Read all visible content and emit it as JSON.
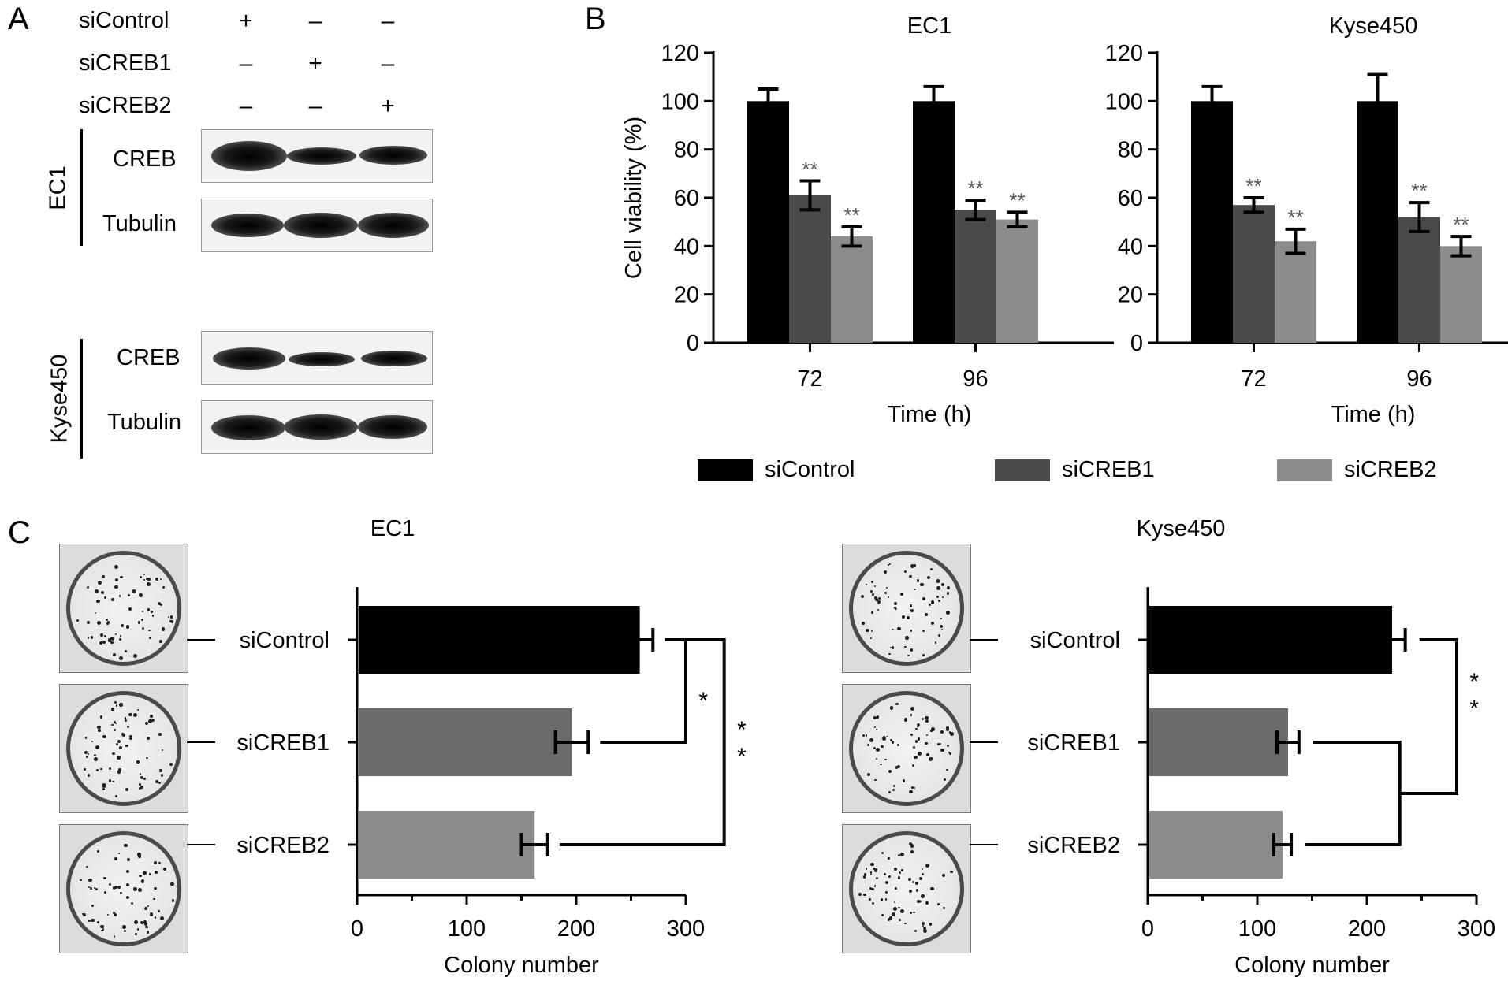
{
  "panels": {
    "a": "A",
    "b": "B",
    "c": "C"
  },
  "panel_a": {
    "conditions": [
      {
        "name": "siControl",
        "signs": [
          "+",
          "–",
          "–"
        ]
      },
      {
        "name": "siCREB1",
        "signs": [
          "–",
          "+",
          "–"
        ]
      },
      {
        "name": "siCREB2",
        "signs": [
          "–",
          "–",
          "+"
        ]
      }
    ],
    "cell_lines": [
      {
        "name": "EC1",
        "rows": [
          "CREB",
          "Tubulin"
        ]
      },
      {
        "name": "Kyse450",
        "rows": [
          "CREB",
          "Tubulin"
        ]
      }
    ],
    "band_intensity": {
      "EC1": {
        "CREB": [
          1.0,
          0.55,
          0.6
        ],
        "Tubulin": [
          0.9,
          0.95,
          0.95
        ]
      },
      "Kyse450": {
        "CREB": [
          0.95,
          0.5,
          0.55
        ],
        "Tubulin": [
          1.0,
          1.0,
          0.95
        ]
      }
    }
  },
  "chart_data": [
    {
      "type": "bar",
      "title": "EC1",
      "xlabel": "Time (h)",
      "ylabel": "Cell viability (%)",
      "categories": [
        "72",
        "96"
      ],
      "ylim": [
        0,
        120
      ],
      "yticks": [
        0,
        20,
        40,
        60,
        80,
        100,
        120
      ],
      "series": [
        {
          "name": "siControl",
          "values": [
            100,
            100
          ],
          "errors": [
            5,
            6
          ],
          "sig": [
            "",
            ""
          ],
          "color": "#000000"
        },
        {
          "name": "siCREB1",
          "values": [
            61,
            55
          ],
          "errors": [
            6,
            4
          ],
          "sig": [
            "**",
            "**"
          ],
          "color": "#4a4a4a"
        },
        {
          "name": "siCREB2",
          "values": [
            44,
            51
          ],
          "errors": [
            4,
            3
          ],
          "sig": [
            "**",
            "**"
          ],
          "color": "#8c8c8c"
        }
      ],
      "legend": "bottom"
    },
    {
      "type": "bar",
      "title": "Kyse450",
      "xlabel": "Time (h)",
      "ylabel": "",
      "categories": [
        "72",
        "96"
      ],
      "ylim": [
        0,
        120
      ],
      "yticks": [
        0,
        20,
        40,
        60,
        80,
        100,
        120
      ],
      "series": [
        {
          "name": "siControl",
          "values": [
            100,
            100
          ],
          "errors": [
            6,
            11
          ],
          "sig": [
            "",
            ""
          ],
          "color": "#000000"
        },
        {
          "name": "siCREB1",
          "values": [
            57,
            52
          ],
          "errors": [
            3,
            6
          ],
          "sig": [
            "**",
            "**"
          ],
          "color": "#4a4a4a"
        },
        {
          "name": "siCREB2",
          "values": [
            42,
            40
          ],
          "errors": [
            5,
            4
          ],
          "sig": [
            "**",
            "**"
          ],
          "color": "#8c8c8c"
        }
      ],
      "legend": "bottom"
    },
    {
      "type": "bar",
      "orientation": "horizontal",
      "title": "EC1",
      "xlabel": "Colony number",
      "categories": [
        "siControl",
        "siCREB1",
        "siCREB2"
      ],
      "values": [
        258,
        196,
        162
      ],
      "errors": [
        12,
        15,
        12
      ],
      "colors": [
        "#000000",
        "#6a6a6a",
        "#8c8c8c"
      ],
      "xlim": [
        0,
        300
      ],
      "xticks": [
        0,
        100,
        200,
        300
      ],
      "significance": [
        {
          "pair": [
            "siControl",
            "siCREB1"
          ],
          "label": "*"
        },
        {
          "pair": [
            "siControl",
            "siCREB2"
          ],
          "label": "**"
        }
      ]
    },
    {
      "type": "bar",
      "orientation": "horizontal",
      "title": "Kyse450",
      "xlabel": "Colony number",
      "categories": [
        "siControl",
        "siCREB1",
        "siCREB2"
      ],
      "values": [
        223,
        128,
        123
      ],
      "errors": [
        12,
        10,
        8
      ],
      "colors": [
        "#000000",
        "#6a6a6a",
        "#8c8c8c"
      ],
      "xlim": [
        0,
        300
      ],
      "xticks": [
        0,
        100,
        200,
        300
      ],
      "significance": [
        {
          "pair": [
            "siControl",
            "siCREB1+siCREB2"
          ],
          "label": "**"
        }
      ]
    }
  ],
  "legend": [
    {
      "name": "siControl",
      "color": "#000000"
    },
    {
      "name": "siCREB1",
      "color": "#4a4a4a"
    },
    {
      "name": "siCREB2",
      "color": "#8c8c8c"
    }
  ]
}
